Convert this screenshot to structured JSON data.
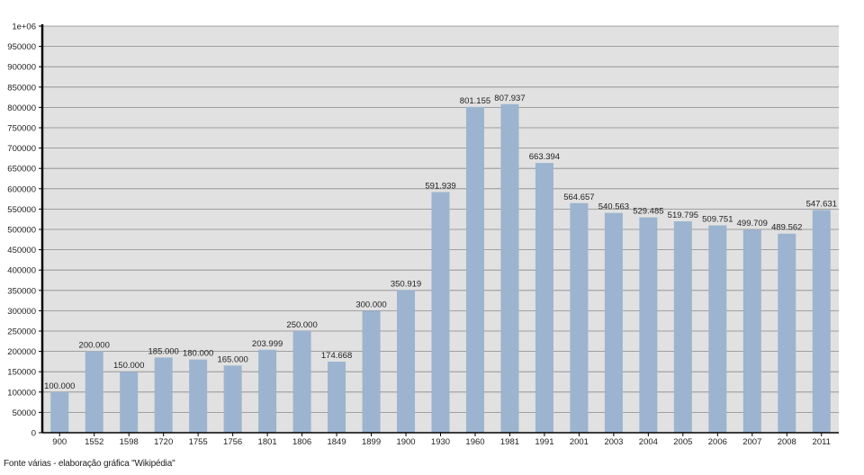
{
  "chart_data": {
    "type": "bar",
    "categories": [
      "900",
      "1552",
      "1598",
      "1720",
      "1755",
      "1756",
      "1801",
      "1806",
      "1849",
      "1899",
      "1900",
      "1930",
      "1960",
      "1981",
      "1991",
      "2001",
      "2003",
      "2004",
      "2005",
      "2006",
      "2007",
      "2008",
      "2011"
    ],
    "values": [
      100000,
      200000,
      150000,
      185000,
      180000,
      165000,
      203999,
      250000,
      174668,
      300000,
      350919,
      591939,
      801155,
      807937,
      663394,
      564657,
      540563,
      529485,
      519795,
      509751,
      499709,
      489562,
      547631
    ],
    "data_labels": [
      "100.000",
      "200.000",
      "150.000",
      "185.000",
      "180.000",
      "165.000",
      "203.999",
      "250.000",
      "174.668",
      "300.000",
      "350.919",
      "591.939",
      "801.155",
      "807.937",
      "663.394",
      "564.657",
      "540.563",
      "529.485",
      "519.795",
      "509.751",
      "499.709",
      "489.562",
      "547.631"
    ],
    "y_ticks": [
      0,
      50000,
      100000,
      150000,
      200000,
      250000,
      300000,
      350000,
      400000,
      450000,
      500000,
      550000,
      600000,
      650000,
      700000,
      750000,
      800000,
      850000,
      900000,
      950000,
      1000000
    ],
    "y_tick_labels": [
      "0",
      "50000",
      "100000",
      "150000",
      "200000",
      "250000",
      "300000",
      "350000",
      "400000",
      "450000",
      "500000",
      "550000",
      "600000",
      "650000",
      "700000",
      "750000",
      "800000",
      "850000",
      "900000",
      "950000",
      "1e+06"
    ],
    "ylim": [
      0,
      1000000
    ],
    "grid": true,
    "title": "",
    "xlabel": "",
    "ylabel": "",
    "colors": {
      "bar": "#9cb4cf",
      "plot_bg": "#e1e1e1",
      "grid": "#8a8a8a",
      "axis": "#000000"
    }
  },
  "footer": {
    "source": "Fonte várias - elaboração gráfica \"Wikipédia\""
  }
}
